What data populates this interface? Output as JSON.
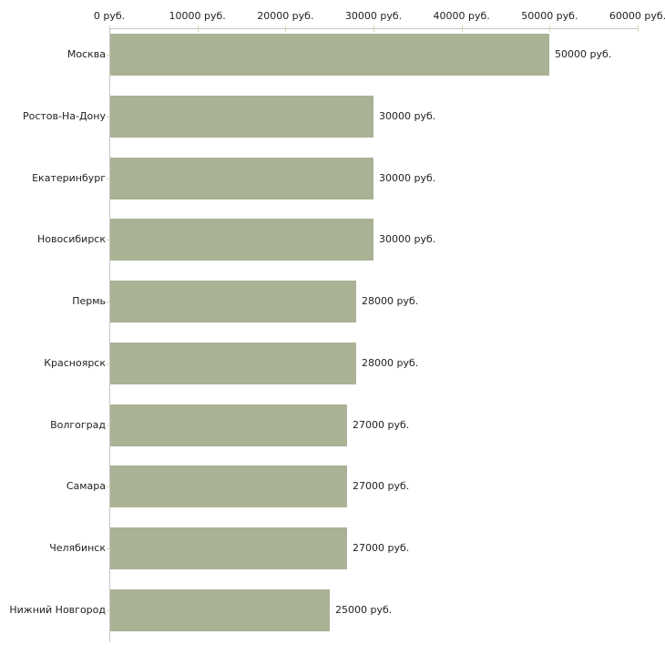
{
  "chart_data": {
    "type": "bar",
    "orientation": "horizontal",
    "title": "",
    "unit": "руб.",
    "categories": [
      "Москва",
      "Ростов-На-Дону",
      "Екатеринбург",
      "Новосибирск",
      "Пермь",
      "Красноярск",
      "Волгоград",
      "Самара",
      "Челябинск",
      "Нижний Новгород"
    ],
    "values": [
      50000,
      30000,
      30000,
      30000,
      28000,
      28000,
      27000,
      27000,
      27000,
      25000
    ],
    "value_labels": [
      "50000 руб.",
      "30000 руб.",
      "30000 руб.",
      "30000 руб.",
      "28000 руб.",
      "28000 руб.",
      "27000 руб.",
      "27000 руб.",
      "27000 руб.",
      "25000 руб."
    ],
    "x_axis": {
      "position": "top",
      "min": 0,
      "max": 60000,
      "ticks": [
        0,
        10000,
        20000,
        30000,
        40000,
        50000,
        60000
      ],
      "tick_labels": [
        "0 руб.",
        "10000 руб.",
        "20000 руб.",
        "30000 руб.",
        "40000 руб.",
        "50000 руб.",
        "60000 руб."
      ]
    },
    "grid": false,
    "legend": false,
    "colors": {
      "bar": "#a9b295",
      "axis_line": "#c6c6c6",
      "tick_mark": "#d8d8b4",
      "text": "#222222",
      "background": "#ffffff"
    }
  }
}
